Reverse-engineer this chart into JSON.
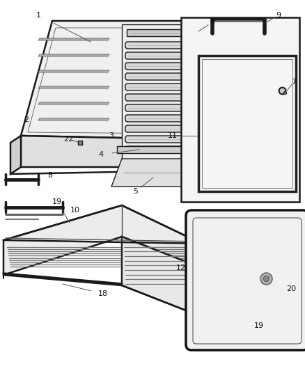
{
  "bg": "#ffffff",
  "lc": "#1a1a1a",
  "lc_thin": "#444444",
  "lc_gray": "#888888",
  "label_fs": 8,
  "label_color": "#111111"
}
